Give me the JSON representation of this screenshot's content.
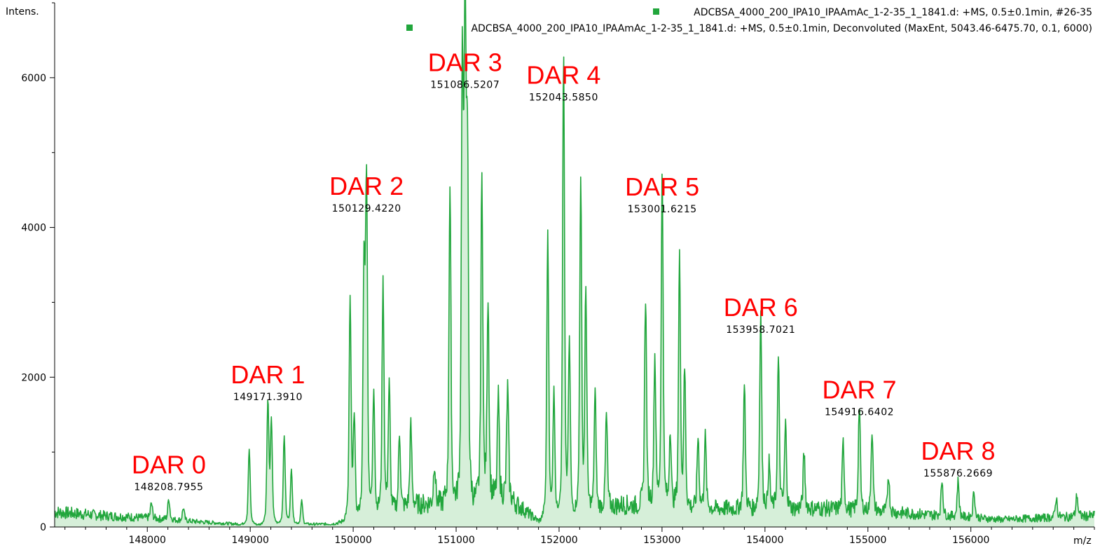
{
  "chart_data": {
    "type": "line",
    "ylabel": "Intens.",
    "xlabel": "m/z",
    "xlim": [
      147100,
      157200
    ],
    "ylim": [
      0,
      7000
    ],
    "x_ticks": [
      148000,
      149000,
      150000,
      151000,
      152000,
      153000,
      154000,
      155000,
      156000
    ],
    "y_ticks": [
      0,
      2000,
      4000,
      6000
    ],
    "legend": [
      "ADCBSA_4000_200_IPA10_IPAAmAc_1-2-35_1_1841.d: +MS, 0.5±0.1min, #26-35",
      "ADCBSA_4000_200_IPA10_IPAAmAc_1-2-35_1_1841.d: +MS, 0.5±0.1min, Deconvoluted (MaxEnt, 5043.46-6475.70, 0.1, 6000)"
    ],
    "legend_position": "top-right",
    "series_color": "#21a63c",
    "fill_color": "#d6efd9",
    "annotation_color": "#ff0000",
    "baseline": [
      [
        147100,
        200
      ],
      [
        147600,
        150
      ],
      [
        148000,
        120
      ],
      [
        148600,
        60
      ],
      [
        149000,
        30
      ],
      [
        149800,
        40
      ],
      [
        150600,
        300
      ],
      [
        151500,
        400
      ],
      [
        151800,
        80
      ],
      [
        152600,
        300
      ],
      [
        153500,
        250
      ],
      [
        154600,
        250
      ],
      [
        155200,
        200
      ],
      [
        156300,
        100
      ],
      [
        157200,
        150
      ]
    ],
    "peaks": [
      {
        "x": 148040,
        "y": 180
      },
      {
        "x": 148208.7955,
        "y": 250
      },
      {
        "x": 148350,
        "y": 150
      },
      {
        "x": 148990,
        "y": 900
      },
      {
        "x": 149171.391,
        "y": 1450
      },
      {
        "x": 149205,
        "y": 1200
      },
      {
        "x": 149330,
        "y": 1050
      },
      {
        "x": 149400,
        "y": 650
      },
      {
        "x": 149500,
        "y": 280
      },
      {
        "x": 149970,
        "y": 2600
      },
      {
        "x": 150010,
        "y": 1200
      },
      {
        "x": 150105,
        "y": 2900
      },
      {
        "x": 150129.422,
        "y": 3970
      },
      {
        "x": 150200,
        "y": 1500
      },
      {
        "x": 150290,
        "y": 2750
      },
      {
        "x": 150350,
        "y": 1500
      },
      {
        "x": 150450,
        "y": 900
      },
      {
        "x": 150560,
        "y": 950
      },
      {
        "x": 150790,
        "y": 500
      },
      {
        "x": 150940,
        "y": 3750
      },
      {
        "x": 151060,
        "y": 5050
      },
      {
        "x": 151086.5207,
        "y": 5620
      },
      {
        "x": 151110,
        "y": 4000
      },
      {
        "x": 151250,
        "y": 3820
      },
      {
        "x": 151310,
        "y": 2400
      },
      {
        "x": 151410,
        "y": 1200
      },
      {
        "x": 151500,
        "y": 1300
      },
      {
        "x": 151890,
        "y": 3400
      },
      {
        "x": 151950,
        "y": 1500
      },
      {
        "x": 152043.585,
        "y": 5450
      },
      {
        "x": 152100,
        "y": 2000
      },
      {
        "x": 152210,
        "y": 3900
      },
      {
        "x": 152260,
        "y": 2600
      },
      {
        "x": 152350,
        "y": 1400
      },
      {
        "x": 152460,
        "y": 1100
      },
      {
        "x": 152840,
        "y": 2500
      },
      {
        "x": 152930,
        "y": 1800
      },
      {
        "x": 153001.6215,
        "y": 3960
      },
      {
        "x": 153080,
        "y": 950
      },
      {
        "x": 153170,
        "y": 2950
      },
      {
        "x": 153220,
        "y": 1600
      },
      {
        "x": 153350,
        "y": 850
      },
      {
        "x": 153420,
        "y": 850
      },
      {
        "x": 153800,
        "y": 1450
      },
      {
        "x": 153958.7021,
        "y": 2350
      },
      {
        "x": 154040,
        "y": 550
      },
      {
        "x": 154130,
        "y": 1780
      },
      {
        "x": 154200,
        "y": 1000
      },
      {
        "x": 154380,
        "y": 650
      },
      {
        "x": 154760,
        "y": 800
      },
      {
        "x": 154916.6402,
        "y": 1250
      },
      {
        "x": 155040,
        "y": 980
      },
      {
        "x": 155200,
        "y": 450
      },
      {
        "x": 155720,
        "y": 420
      },
      {
        "x": 155876.2669,
        "y": 430
      },
      {
        "x": 156030,
        "y": 320
      },
      {
        "x": 156830,
        "y": 230
      },
      {
        "x": 157030,
        "y": 260
      }
    ],
    "peak_labels": [
      {
        "x": 148208.7955,
        "y": 250,
        "text": "148208.7955"
      },
      {
        "x": 149171.391,
        "y": 1450,
        "text": "149171.3910"
      },
      {
        "x": 150129.422,
        "y": 3970,
        "text": "150129.4220"
      },
      {
        "x": 151086.5207,
        "y": 5620,
        "text": "151086.5207"
      },
      {
        "x": 152043.585,
        "y": 5450,
        "text": "152043.5850"
      },
      {
        "x": 153001.6215,
        "y": 3960,
        "text": "153001.6215"
      },
      {
        "x": 153958.7021,
        "y": 2350,
        "text": "153958.7021"
      },
      {
        "x": 154916.6402,
        "y": 1250,
        "text": "154916.6402"
      },
      {
        "x": 155876.2669,
        "y": 430,
        "text": "155876.2669"
      }
    ],
    "annotations": [
      {
        "x": 148208.7955,
        "text": "DAR 0"
      },
      {
        "x": 149171.391,
        "text": "DAR 1"
      },
      {
        "x": 150129.422,
        "text": "DAR 2"
      },
      {
        "x": 151086.5207,
        "text": "DAR 3"
      },
      {
        "x": 152043.585,
        "text": "DAR 4"
      },
      {
        "x": 153001.6215,
        "text": "DAR 5"
      },
      {
        "x": 153958.7021,
        "text": "DAR 6"
      },
      {
        "x": 154916.6402,
        "text": "DAR 7"
      },
      {
        "x": 155876.2669,
        "text": "DAR 8"
      }
    ]
  }
}
